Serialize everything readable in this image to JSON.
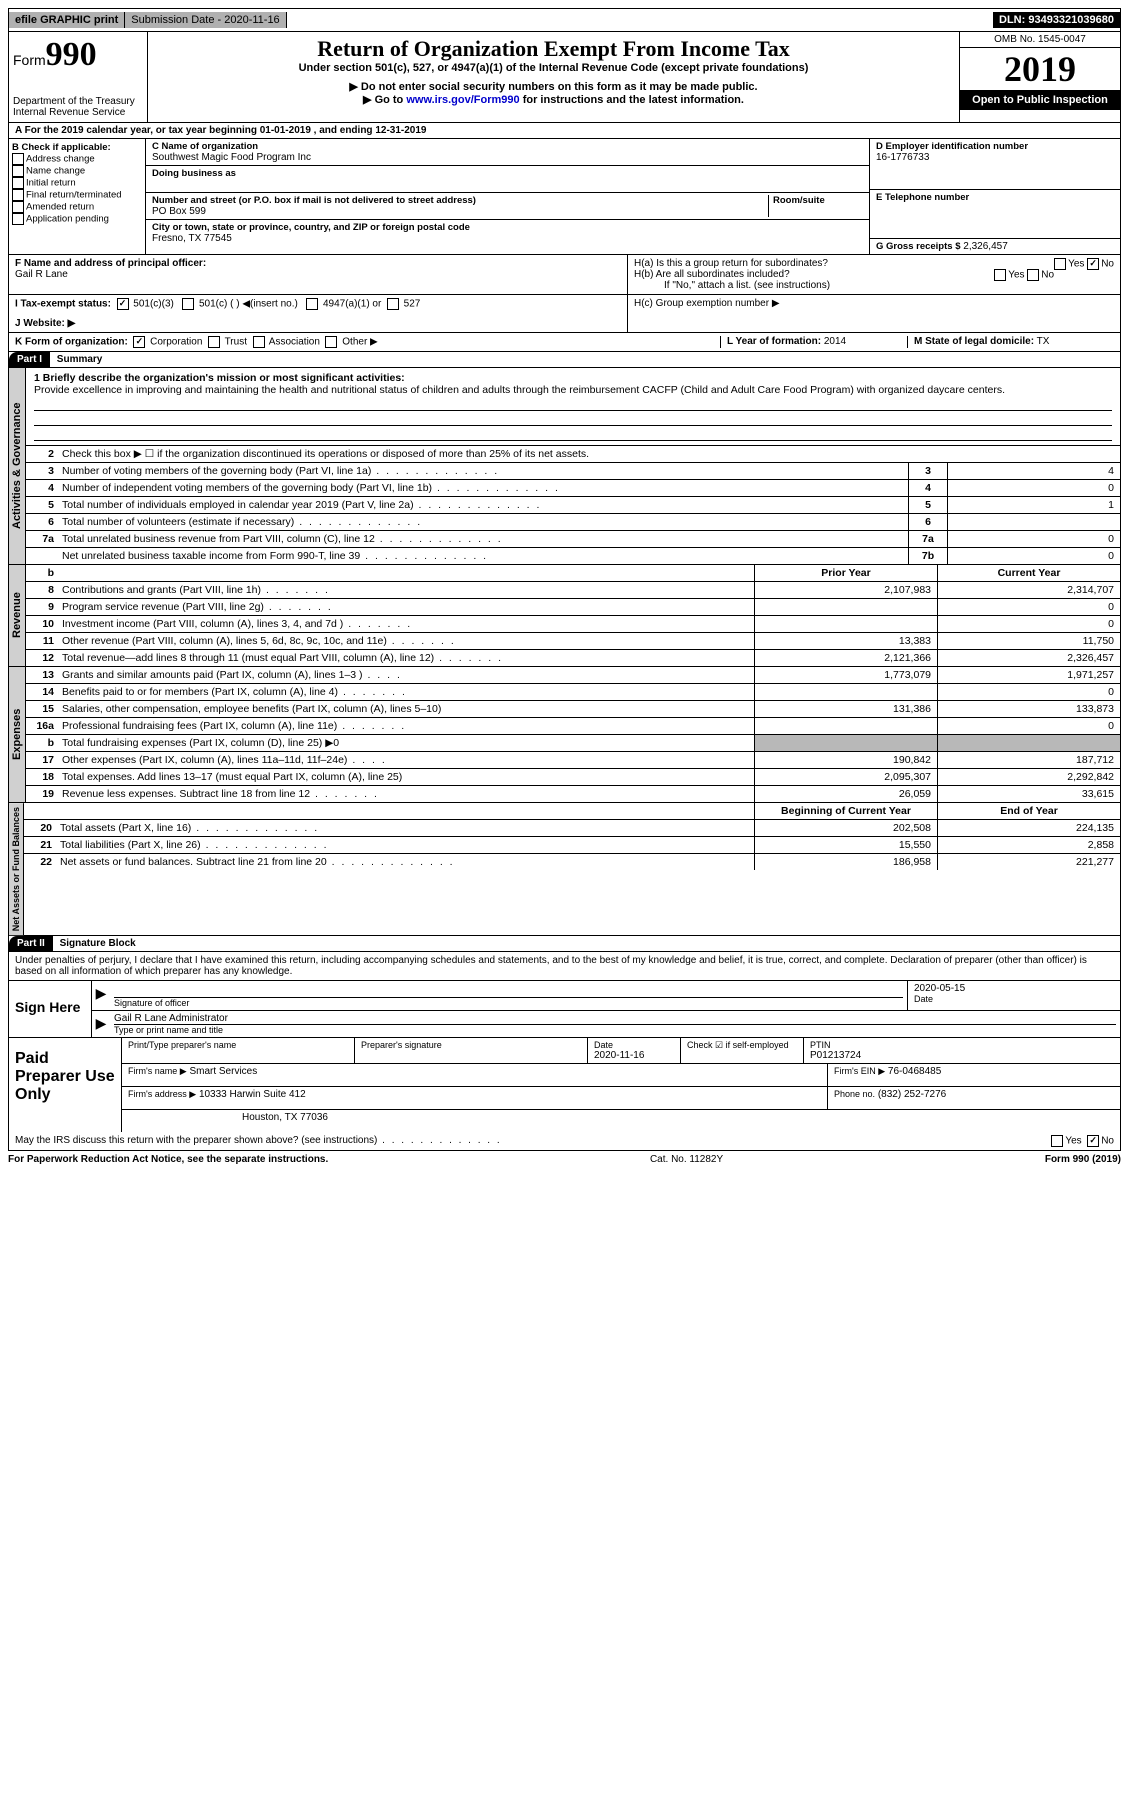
{
  "topbar": {
    "efile": "efile GRAPHIC print",
    "sub_label": "Submission Date - 2020-11-16",
    "dln": "DLN: 93493321039680"
  },
  "header": {
    "form_prefix": "Form",
    "form_number": "990",
    "dept": "Department of the Treasury\nInternal Revenue Service",
    "title": "Return of Organization Exempt From Income Tax",
    "subtitle": "Under section 501(c), 527, or 4947(a)(1) of the Internal Revenue Code (except private foundations)",
    "note1": "▶ Do not enter social security numbers on this form as it may be made public.",
    "note2_pre": "▶ Go to ",
    "note2_link": "www.irs.gov/Form990",
    "note2_post": " for instructions and the latest information.",
    "omb": "OMB No. 1545-0047",
    "year": "2019",
    "open_public": "Open to Public Inspection"
  },
  "rowA": "A For the 2019 calendar year, or tax year beginning 01-01-2019    , and ending 12-31-2019",
  "B": {
    "label": "B Check if applicable:",
    "items": [
      "Address change",
      "Name change",
      "Initial return",
      "Final return/terminated",
      "Amended return",
      "Application pending"
    ]
  },
  "C": {
    "name_label": "C Name of organization",
    "name": "Southwest Magic Food Program Inc",
    "dba_label": "Doing business as",
    "street_label": "Number and street (or P.O. box if mail is not delivered to street address)",
    "room_label": "Room/suite",
    "street": "PO Box 599",
    "city_label": "City or town, state or province, country, and ZIP or foreign postal code",
    "city": "Fresno, TX  77545"
  },
  "D": {
    "label": "D Employer identification number",
    "value": "16-1776733"
  },
  "E": {
    "label": "E Telephone number"
  },
  "G": {
    "label": "G Gross receipts $",
    "value": "2,326,457"
  },
  "F": {
    "label": "F  Name and address of principal officer:",
    "value": "Gail R Lane"
  },
  "H": {
    "a": "H(a)  Is this a group return for subordinates?",
    "b": "H(b)  Are all subordinates included?",
    "b_note": "If \"No,\" attach a list. (see instructions)",
    "c": "H(c)  Group exemption number ▶",
    "yes": "Yes",
    "no": "No"
  },
  "I": {
    "label": "I   Tax-exempt status:",
    "opts": [
      "501(c)(3)",
      "501(c) (  ) ◀(insert no.)",
      "4947(a)(1) or",
      "527"
    ]
  },
  "J": {
    "label": "J   Website: ▶"
  },
  "K": {
    "label": "K Form of organization:",
    "opts": [
      "Corporation",
      "Trust",
      "Association",
      "Other ▶"
    ]
  },
  "L": {
    "label": "L Year of formation:",
    "value": "2014"
  },
  "M": {
    "label": "M State of legal domicile:",
    "value": "TX"
  },
  "partI": {
    "tag": "Part I",
    "title": "Summary"
  },
  "mission": {
    "label": "1   Briefly describe the organization's mission or most significant activities:",
    "text": "Provide excellence in improving and maintaining the health and nutritional status of children and adults through the reimbursement CACFP (Child and Adult Care Food Program) with organized daycare centers."
  },
  "line2": "Check this box ▶ ☐  if the organization discontinued its operations or disposed of more than 25% of its net assets.",
  "govLines": [
    {
      "n": "3",
      "t": "Number of voting members of the governing body (Part VI, line 1a)",
      "b": "3",
      "v": "4"
    },
    {
      "n": "4",
      "t": "Number of independent voting members of the governing body (Part VI, line 1b)",
      "b": "4",
      "v": "0"
    },
    {
      "n": "5",
      "t": "Total number of individuals employed in calendar year 2019 (Part V, line 2a)",
      "b": "5",
      "v": "1"
    },
    {
      "n": "6",
      "t": "Total number of volunteers (estimate if necessary)",
      "b": "6",
      "v": ""
    },
    {
      "n": "7a",
      "t": "Total unrelated business revenue from Part VIII, column (C), line 12",
      "b": "7a",
      "v": "0"
    },
    {
      "n": "",
      "t": "Net unrelated business taxable income from Form 990-T, line 39",
      "b": "7b",
      "v": "0"
    }
  ],
  "colHeads": {
    "b": "b",
    "prior": "Prior Year",
    "curr": "Current Year"
  },
  "revenue": [
    {
      "n": "8",
      "t": "Contributions and grants (Part VIII, line 1h)",
      "p": "2,107,983",
      "c": "2,314,707"
    },
    {
      "n": "9",
      "t": "Program service revenue (Part VIII, line 2g)",
      "p": "",
      "c": "0"
    },
    {
      "n": "10",
      "t": "Investment income (Part VIII, column (A), lines 3, 4, and 7d )",
      "p": "",
      "c": "0"
    },
    {
      "n": "11",
      "t": "Other revenue (Part VIII, column (A), lines 5, 6d, 8c, 9c, 10c, and 11e)",
      "p": "13,383",
      "c": "11,750"
    },
    {
      "n": "12",
      "t": "Total revenue—add lines 8 through 11 (must equal Part VIII, column (A), line 12)",
      "p": "2,121,366",
      "c": "2,326,457"
    }
  ],
  "expenses": [
    {
      "n": "13",
      "t": "Grants and similar amounts paid (Part IX, column (A), lines 1–3 )",
      "p": "1,773,079",
      "c": "1,971,257",
      "d": "dotss"
    },
    {
      "n": "14",
      "t": "Benefits paid to or for members (Part IX, column (A), line 4)",
      "p": "",
      "c": "0",
      "d": "dotsm"
    },
    {
      "n": "15",
      "t": "Salaries, other compensation, employee benefits (Part IX, column (A), lines 5–10)",
      "p": "131,386",
      "c": "133,873",
      "d": ""
    },
    {
      "n": "16a",
      "t": "Professional fundraising fees (Part IX, column (A), line 11e)",
      "p": "",
      "c": "0",
      "d": "dotsm"
    },
    {
      "n": "b",
      "t": "Total fundraising expenses (Part IX, column (D), line 25) ▶0",
      "p": "GREY",
      "c": "GREY",
      "d": ""
    },
    {
      "n": "17",
      "t": "Other expenses (Part IX, column (A), lines 11a–11d, 11f–24e)",
      "p": "190,842",
      "c": "187,712",
      "d": "dotss"
    },
    {
      "n": "18",
      "t": "Total expenses. Add lines 13–17 (must equal Part IX, column (A), line 25)",
      "p": "2,095,307",
      "c": "2,292,842",
      "d": ""
    },
    {
      "n": "19",
      "t": "Revenue less expenses. Subtract line 18 from line 12",
      "p": "26,059",
      "c": "33,615",
      "d": "dotsm"
    }
  ],
  "netHeads": {
    "prior": "Beginning of Current Year",
    "curr": "End of Year"
  },
  "netassets": [
    {
      "n": "20",
      "t": "Total assets (Part X, line 16)",
      "p": "202,508",
      "c": "224,135"
    },
    {
      "n": "21",
      "t": "Total liabilities (Part X, line 26)",
      "p": "15,550",
      "c": "2,858"
    },
    {
      "n": "22",
      "t": "Net assets or fund balances. Subtract line 21 from line 20",
      "p": "186,958",
      "c": "221,277"
    }
  ],
  "vtabs": {
    "gov": "Activities & Governance",
    "rev": "Revenue",
    "exp": "Expenses",
    "net": "Net Assets or\nFund Balances"
  },
  "partII": {
    "tag": "Part II",
    "title": "Signature Block"
  },
  "sig": {
    "intro": "Under penalties of perjury, I declare that I have examined this return, including accompanying schedules and statements, and to the best of my knowledge and belief, it is true, correct, and complete. Declaration of preparer (other than officer) is based on all information of which preparer has any knowledge.",
    "sign_here": "Sign Here",
    "sig_officer": "Signature of officer",
    "date_label": "Date",
    "date": "2020-05-15",
    "name_title": "Gail R Lane  Administrator",
    "type_label": "Type or print name and title"
  },
  "prep": {
    "label": "Paid Preparer Use Only",
    "pname_label": "Print/Type preparer's name",
    "psig_label": "Preparer's signature",
    "pdate_label": "Date",
    "pdate": "2020-11-16",
    "check_label": "Check ☑ if self-employed",
    "ptin_label": "PTIN",
    "ptin": "P01213724",
    "firm_name_label": "Firm's name    ▶",
    "firm_name": "Smart Services",
    "firm_ein_label": "Firm's EIN ▶",
    "firm_ein": "76-0468485",
    "firm_addr_label": "Firm's address ▶",
    "firm_addr1": "10333 Harwin Suite 412",
    "firm_addr2": "Houston, TX  77036",
    "phone_label": "Phone no.",
    "phone": "(832) 252-7276"
  },
  "discuss": "May the IRS discuss this return with the preparer shown above? (see instructions)",
  "footer": {
    "left": "For Paperwork Reduction Act Notice, see the separate instructions.",
    "mid": "Cat. No. 11282Y",
    "right": "Form 990 (2019)"
  }
}
